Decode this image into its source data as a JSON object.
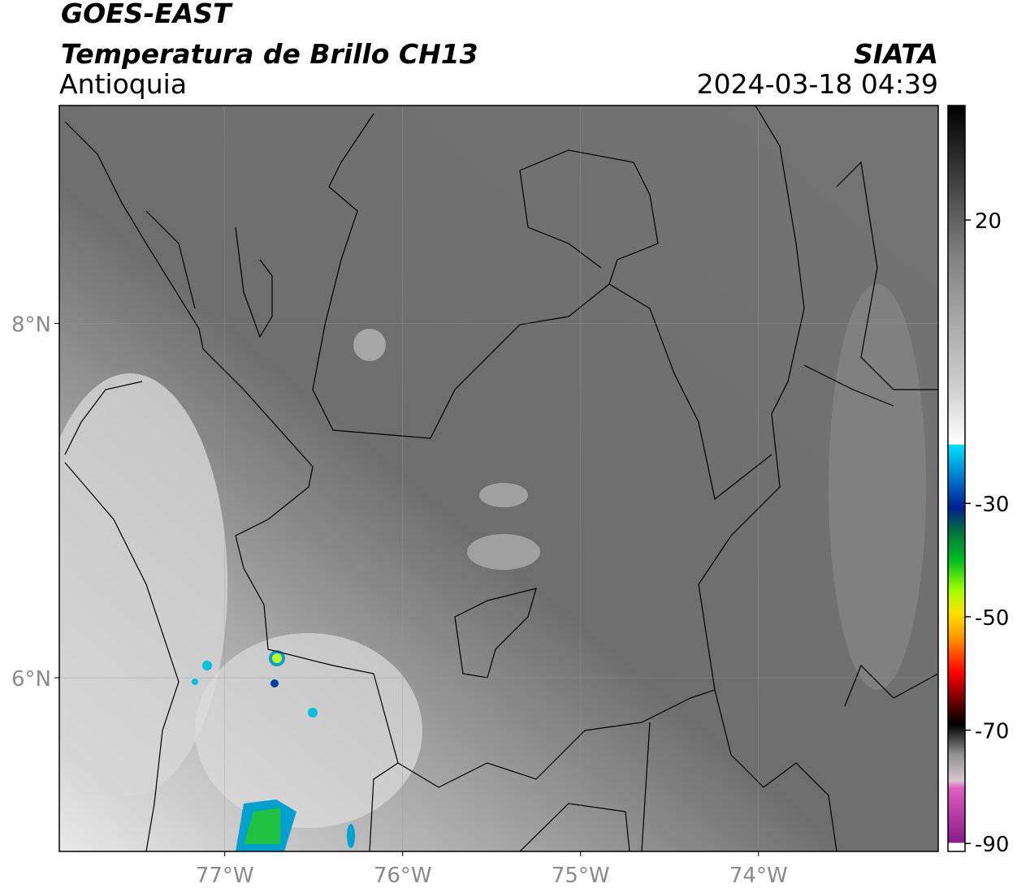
{
  "header": {
    "title": "GOES-EAST",
    "subtitle": "Temperatura de Brillo CH13",
    "region": "Antioquia",
    "source": "SIATA",
    "datetime": "2024-03-18 04:39"
  },
  "map": {
    "xlim": [
      -77.93,
      -72.99
    ],
    "ylim": [
      5.02,
      9.23
    ],
    "xticks": [
      {
        "value": -77,
        "label": "77°W"
      },
      {
        "value": -76,
        "label": "76°W"
      },
      {
        "value": -75,
        "label": "75°W"
      },
      {
        "value": -74,
        "label": "74°W"
      }
    ],
    "yticks": [
      {
        "value": 8,
        "label": "8°N"
      },
      {
        "value": 6,
        "label": "6°N"
      }
    ]
  },
  "colorbar": {
    "lim": [
      -91.4,
      40.2
    ],
    "ticks": [
      20,
      -30,
      -50,
      -70,
      -90
    ]
  }
}
